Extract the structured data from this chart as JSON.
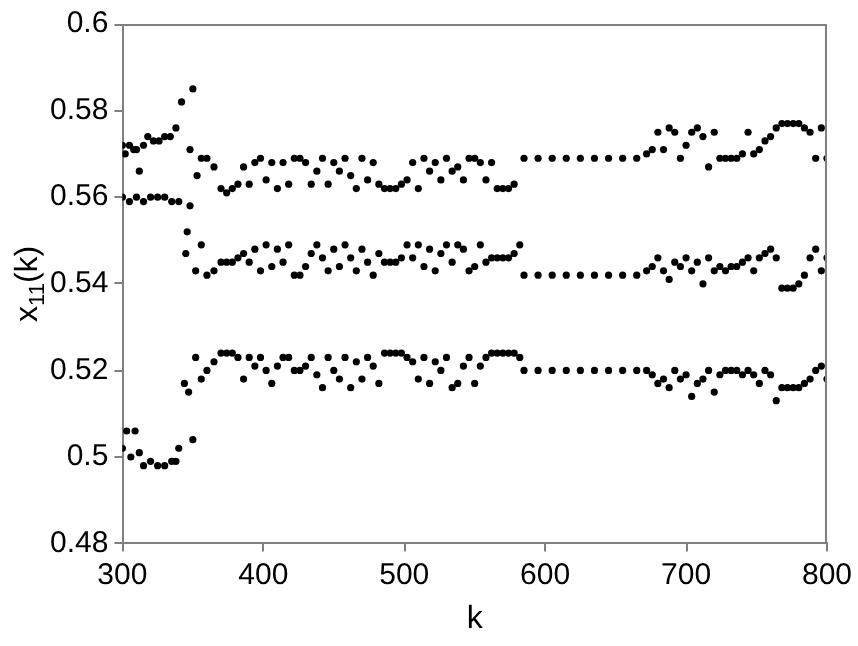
{
  "chart_data": {
    "type": "scatter",
    "xlabel": "k",
    "ylabel": "x$_{11}$(k)",
    "xlim": [
      300,
      800
    ],
    "ylim": [
      0.48,
      0.6
    ],
    "xticks": [
      300,
      400,
      500,
      600,
      700,
      800
    ],
    "yticks": [
      0.48,
      0.5,
      0.52,
      0.54,
      0.56,
      0.58,
      0.6
    ],
    "grid": false,
    "legend": false,
    "marker": "circle",
    "series": [
      {
        "color": "#000000",
        "x": [
          300,
          302,
          305,
          308,
          310,
          312,
          315,
          318,
          322,
          326,
          330,
          334,
          338,
          342,
          348,
          350,
          353,
          356,
          360,
          365,
          370,
          374,
          378,
          382,
          386,
          390,
          394,
          398,
          402,
          406,
          410,
          414,
          418,
          422,
          426,
          430,
          434,
          438,
          442,
          446,
          450,
          454,
          458,
          462,
          466,
          470,
          474,
          478,
          482,
          486,
          490,
          494,
          498,
          502,
          506,
          510,
          514,
          518,
          522,
          526,
          530,
          534,
          538,
          542,
          546,
          550,
          554,
          558,
          562,
          566,
          570,
          574,
          578,
          585,
          595,
          605,
          615,
          625,
          635,
          645,
          655,
          665,
          672,
          676,
          680,
          684,
          688,
          692,
          696,
          700,
          704,
          708,
          712,
          716,
          720,
          724,
          728,
          732,
          736,
          740,
          744,
          748,
          752,
          756,
          760,
          764,
          768,
          772,
          776,
          780,
          784,
          788,
          792,
          796,
          800
        ],
        "values": [
          0.572,
          0.57,
          0.572,
          0.571,
          0.571,
          0.566,
          0.572,
          0.574,
          0.573,
          0.573,
          0.574,
          0.574,
          0.576,
          0.582,
          0.571,
          0.585,
          0.565,
          0.569,
          0.569,
          0.567,
          0.562,
          0.561,
          0.562,
          0.563,
          0.567,
          0.563,
          0.568,
          0.569,
          0.564,
          0.568,
          0.562,
          0.568,
          0.563,
          0.569,
          0.569,
          0.568,
          0.563,
          0.566,
          0.569,
          0.563,
          0.568,
          0.566,
          0.569,
          0.565,
          0.562,
          0.569,
          0.564,
          0.568,
          0.563,
          0.562,
          0.562,
          0.562,
          0.563,
          0.564,
          0.568,
          0.562,
          0.569,
          0.566,
          0.568,
          0.564,
          0.569,
          0.566,
          0.567,
          0.564,
          0.569,
          0.569,
          0.568,
          0.564,
          0.568,
          0.562,
          0.562,
          0.562,
          0.563,
          0.569,
          0.569,
          0.569,
          0.569,
          0.569,
          0.569,
          0.569,
          0.569,
          0.569,
          0.57,
          0.571,
          0.575,
          0.571,
          0.576,
          0.575,
          0.569,
          0.572,
          0.575,
          0.576,
          0.574,
          0.567,
          0.575,
          0.569,
          0.569,
          0.569,
          0.569,
          0.57,
          0.575,
          0.57,
          0.571,
          0.573,
          0.574,
          0.576,
          0.577,
          0.577,
          0.577,
          0.577,
          0.576,
          0.575,
          0.569,
          0.576,
          0.569
        ]
      },
      {
        "color": "#000000",
        "x": [
          300,
          305,
          310,
          315,
          320,
          325,
          330,
          335,
          340,
          345,
          346,
          348,
          352,
          356,
          360,
          365,
          370,
          374,
          378,
          382,
          386,
          390,
          394,
          398,
          402,
          406,
          410,
          414,
          418,
          422,
          426,
          430,
          434,
          438,
          442,
          446,
          450,
          454,
          458,
          462,
          466,
          470,
          474,
          478,
          482,
          486,
          490,
          494,
          498,
          502,
          506,
          510,
          514,
          518,
          522,
          526,
          530,
          534,
          538,
          542,
          546,
          550,
          554,
          558,
          562,
          566,
          570,
          574,
          578,
          582,
          585,
          595,
          605,
          615,
          625,
          635,
          645,
          655,
          665,
          672,
          676,
          680,
          684,
          688,
          692,
          696,
          700,
          704,
          708,
          712,
          716,
          720,
          724,
          728,
          732,
          736,
          740,
          744,
          748,
          752,
          756,
          760,
          764,
          768,
          772,
          776,
          780,
          784,
          788,
          792,
          796,
          800
        ],
        "values": [
          0.56,
          0.559,
          0.56,
          0.559,
          0.56,
          0.56,
          0.56,
          0.559,
          0.559,
          0.547,
          0.552,
          0.558,
          0.543,
          0.549,
          0.542,
          0.543,
          0.545,
          0.545,
          0.545,
          0.546,
          0.547,
          0.545,
          0.548,
          0.543,
          0.549,
          0.544,
          0.548,
          0.545,
          0.549,
          0.542,
          0.542,
          0.544,
          0.547,
          0.549,
          0.546,
          0.543,
          0.548,
          0.544,
          0.549,
          0.546,
          0.543,
          0.548,
          0.545,
          0.542,
          0.547,
          0.545,
          0.545,
          0.545,
          0.546,
          0.549,
          0.546,
          0.549,
          0.544,
          0.548,
          0.543,
          0.547,
          0.549,
          0.545,
          0.549,
          0.548,
          0.543,
          0.544,
          0.549,
          0.545,
          0.546,
          0.546,
          0.546,
          0.546,
          0.547,
          0.549,
          0.542,
          0.542,
          0.542,
          0.542,
          0.542,
          0.542,
          0.542,
          0.542,
          0.542,
          0.543,
          0.544,
          0.546,
          0.543,
          0.541,
          0.545,
          0.544,
          0.546,
          0.543,
          0.545,
          0.54,
          0.546,
          0.543,
          0.544,
          0.543,
          0.544,
          0.544,
          0.545,
          0.546,
          0.543,
          0.546,
          0.547,
          0.548,
          0.546,
          0.539,
          0.539,
          0.539,
          0.54,
          0.542,
          0.546,
          0.548,
          0.543,
          0.546
        ]
      },
      {
        "color": "#000000",
        "x": [
          300,
          303,
          306,
          309,
          312,
          315,
          320,
          325,
          330,
          335,
          338,
          340,
          344,
          347,
          350,
          352,
          356,
          360,
          365,
          370,
          374,
          378,
          382,
          386,
          390,
          394,
          398,
          402,
          406,
          410,
          414,
          418,
          422,
          426,
          430,
          434,
          438,
          442,
          446,
          450,
          454,
          458,
          462,
          466,
          470,
          474,
          478,
          482,
          486,
          490,
          494,
          498,
          502,
          506,
          510,
          514,
          518,
          522,
          526,
          530,
          534,
          538,
          542,
          546,
          550,
          554,
          558,
          562,
          566,
          570,
          574,
          578,
          582,
          585,
          595,
          605,
          615,
          625,
          635,
          645,
          655,
          665,
          672,
          676,
          680,
          684,
          688,
          692,
          696,
          700,
          704,
          708,
          712,
          716,
          720,
          724,
          728,
          732,
          736,
          740,
          744,
          748,
          752,
          756,
          760,
          764,
          768,
          772,
          776,
          780,
          784,
          788,
          792,
          796,
          800
        ],
        "values": [
          0.502,
          0.506,
          0.5,
          0.506,
          0.501,
          0.498,
          0.499,
          0.498,
          0.498,
          0.499,
          0.499,
          0.502,
          0.517,
          0.515,
          0.504,
          0.523,
          0.518,
          0.52,
          0.522,
          0.524,
          0.524,
          0.524,
          0.523,
          0.518,
          0.523,
          0.521,
          0.523,
          0.52,
          0.517,
          0.521,
          0.523,
          0.523,
          0.52,
          0.52,
          0.521,
          0.523,
          0.519,
          0.516,
          0.523,
          0.52,
          0.518,
          0.523,
          0.516,
          0.522,
          0.518,
          0.523,
          0.521,
          0.517,
          0.524,
          0.524,
          0.524,
          0.524,
          0.523,
          0.522,
          0.518,
          0.523,
          0.517,
          0.522,
          0.52,
          0.523,
          0.516,
          0.517,
          0.521,
          0.523,
          0.517,
          0.521,
          0.523,
          0.524,
          0.524,
          0.524,
          0.524,
          0.524,
          0.523,
          0.52,
          0.52,
          0.52,
          0.52,
          0.52,
          0.52,
          0.52,
          0.52,
          0.52,
          0.52,
          0.519,
          0.517,
          0.518,
          0.516,
          0.52,
          0.518,
          0.519,
          0.514,
          0.517,
          0.518,
          0.52,
          0.515,
          0.519,
          0.52,
          0.52,
          0.52,
          0.519,
          0.52,
          0.519,
          0.517,
          0.52,
          0.519,
          0.513,
          0.516,
          0.516,
          0.516,
          0.516,
          0.517,
          0.518,
          0.52,
          0.521,
          0.518
        ]
      }
    ]
  }
}
